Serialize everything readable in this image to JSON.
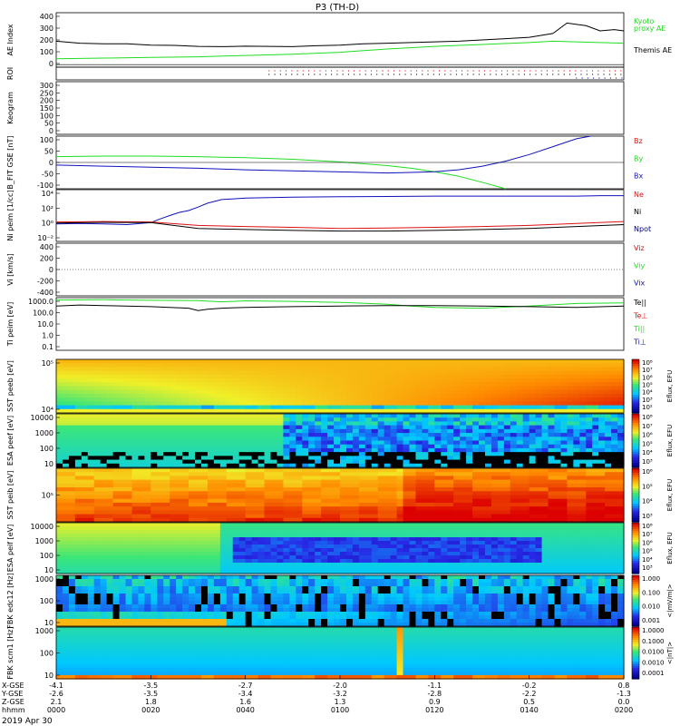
{
  "title": "P3 (TH-D)",
  "date_label": "2019 Apr 30",
  "colors": {
    "black": "#000000",
    "green": "#22dd22",
    "red": "#dd1111",
    "blue": "#1111bb",
    "navy": "#000080"
  },
  "chart_data": [
    {
      "type": "line",
      "panel": "ae",
      "ylabel": "AE Index",
      "ylim": [
        -20,
        400
      ],
      "yticks": [
        "400",
        "300",
        "200",
        "100",
        "0"
      ],
      "legend": [
        "Kyoto",
        "proxy AE",
        "Themis AE"
      ],
      "series": [
        {
          "name": "Themis AE",
          "color": "black",
          "x": [
            0,
            5,
            10,
            15,
            20,
            25,
            30,
            35,
            40,
            45,
            50,
            55,
            60,
            65,
            70,
            75,
            80,
            85,
            90,
            95,
            100,
            105,
            108,
            112,
            115,
            118,
            120
          ],
          "y": [
            180,
            165,
            160,
            160,
            150,
            148,
            140,
            138,
            142,
            140,
            138,
            145,
            150,
            160,
            165,
            170,
            175,
            180,
            190,
            200,
            210,
            240,
            320,
            300,
            260,
            270,
            260
          ]
        },
        {
          "name": "Kyoto proxy AE",
          "color": "green",
          "x": [
            0,
            10,
            20,
            30,
            40,
            50,
            60,
            70,
            80,
            90,
            100,
            105,
            110,
            115,
            120
          ],
          "y": [
            45,
            50,
            55,
            60,
            70,
            80,
            95,
            120,
            140,
            155,
            170,
            180,
            175,
            170,
            165
          ]
        }
      ]
    },
    {
      "type": "scatter",
      "panel": "roi",
      "ylabel": "ROI",
      "rows": [
        {
          "color": "red",
          "x_start": 45,
          "x_end": 120
        },
        {
          "color": "black",
          "x_start": 45,
          "x_end": 120
        },
        {
          "color": "blue",
          "x_start": 110,
          "x_end": 120
        }
      ]
    },
    {
      "type": "line",
      "panel": "keogram",
      "ylabel": "Keogram",
      "ylim": [
        0,
        300
      ],
      "yticks": [
        "300",
        "250",
        "200",
        "150",
        "100",
        "50",
        "0"
      ]
    },
    {
      "type": "line",
      "panel": "bfit",
      "ylabel": "B_FIT GSE [nT]",
      "ylim": [
        -100,
        100
      ],
      "yticks": [
        "100",
        "50",
        "0",
        "-50",
        "-100"
      ],
      "legend": [
        "Bz",
        "By",
        "Bx"
      ],
      "series": [
        {
          "name": "By",
          "color": "green",
          "x": [
            0,
            10,
            20,
            30,
            40,
            50,
            60,
            70,
            75,
            80,
            85,
            90,
            95
          ],
          "y": [
            22,
            24,
            24,
            22,
            18,
            12,
            2,
            -12,
            -22,
            -35,
            -52,
            -75,
            -100
          ]
        },
        {
          "name": "Bx",
          "color": "blue",
          "x": [
            0,
            10,
            20,
            30,
            40,
            50,
            60,
            70,
            75,
            80,
            85,
            90,
            95,
            100,
            105,
            110,
            113
          ],
          "y": [
            -10,
            -14,
            -18,
            -22,
            -28,
            -32,
            -36,
            -40,
            -38,
            -35,
            -28,
            -15,
            5,
            30,
            60,
            90,
            100
          ]
        }
      ]
    },
    {
      "type": "line",
      "panel": "density",
      "ylabel": "Ni peim [1/cc]",
      "yscale": "log",
      "ytick_labels": [
        "10⁴",
        "10²",
        "10⁰",
        "10⁻²"
      ],
      "legend": [
        "Ne",
        "Ni",
        "Npot"
      ],
      "series": [
        {
          "name": "Npot",
          "color": "blue",
          "x": [
            0,
            5,
            10,
            15,
            20,
            22,
            24,
            26,
            28,
            30,
            32,
            35,
            40,
            50,
            60,
            70,
            80,
            90,
            100,
            110,
            115,
            120
          ],
          "y": [
            0.5,
            0.6,
            0.5,
            0.4,
            0.8,
            3,
            10,
            30,
            60,
            200,
            800,
            3000,
            5000,
            7000,
            8000,
            9000,
            10000,
            10000,
            10000,
            10000,
            12000,
            12000
          ]
        },
        {
          "name": "Ne",
          "color": "red",
          "x": [
            0,
            10,
            20,
            30,
            40,
            50,
            60,
            70,
            80,
            90,
            100,
            110,
            120
          ],
          "y": [
            1,
            1.2,
            1,
            0.3,
            0.2,
            0.15,
            0.1,
            0.12,
            0.15,
            0.2,
            0.3,
            0.6,
            1.2
          ]
        },
        {
          "name": "Ni",
          "color": "black",
          "x": [
            0,
            10,
            20,
            30,
            40,
            50,
            60,
            70,
            80,
            90,
            100,
            110,
            120
          ],
          "y": [
            0.7,
            0.9,
            0.8,
            0.1,
            0.07,
            0.05,
            0.04,
            0.04,
            0.05,
            0.07,
            0.1,
            0.2,
            0.4
          ]
        }
      ]
    },
    {
      "type": "line",
      "panel": "velocity",
      "ylabel": "Vi [km/s]",
      "ylim": [
        -500,
        500
      ],
      "yticks": [
        "400",
        "200",
        "0",
        "-200",
        "-400"
      ],
      "legend": [
        "Viz",
        "Viy",
        "Vix"
      ]
    },
    {
      "type": "line",
      "panel": "temperature",
      "ylabel": "Ti peim [eV]",
      "yscale": "log",
      "ytick_labels": [
        "1000.0",
        "100.0",
        "10.0",
        "1.0",
        "0.1"
      ],
      "legend": [
        "Te||",
        "Te⊥",
        "Ti||",
        "Ti⊥"
      ],
      "series": [
        {
          "name": "Ti||",
          "color": "green",
          "x": [
            0,
            10,
            20,
            30,
            35,
            40,
            50,
            60,
            70,
            75,
            80,
            90,
            100,
            110,
            120
          ],
          "y": [
            3000,
            3200,
            2800,
            2600,
            2000,
            2500,
            2200,
            1800,
            1200,
            800,
            600,
            500,
            800,
            1400,
            1600
          ]
        },
        {
          "name": "Te||",
          "color": "black",
          "x": [
            0,
            5,
            10,
            20,
            28,
            30,
            32,
            35,
            40,
            50,
            60,
            70,
            80,
            90,
            100,
            110,
            120
          ],
          "y": [
            800,
            1000,
            900,
            700,
            500,
            300,
            400,
            500,
            600,
            700,
            800,
            900,
            900,
            800,
            700,
            600,
            800
          ]
        }
      ]
    },
    {
      "type": "heatmap",
      "panel": "sst_e",
      "ylabel": "SST peeb [eV]",
      "ytick_labels": [
        "10⁵",
        "10⁴"
      ],
      "zlabel": "Eflux, EFU",
      "zticks": [
        "10⁸",
        "10⁷",
        "10⁶",
        "10⁵",
        "10⁴",
        "10³",
        "10²"
      ]
    },
    {
      "type": "heatmap",
      "panel": "esa_e",
      "ylabel": "ESA peef [eV]",
      "ytick_labels": [
        "10000",
        "1000",
        "100",
        "10"
      ],
      "zlabel": "Eflux, EFU",
      "zticks": [
        "10⁸",
        "10⁷",
        "10⁶",
        "10⁵",
        "10⁴",
        "10³"
      ]
    },
    {
      "type": "heatmap",
      "panel": "sst_i",
      "ylabel": "SST peib [eV]",
      "ytick_labels": [
        "10⁵"
      ],
      "zlabel": "Eflux, EFU",
      "zticks": [
        "10⁶",
        "10⁵",
        "10⁴",
        "10³"
      ]
    },
    {
      "type": "heatmap",
      "panel": "esa_i",
      "ylabel": "ESA peif [eV]",
      "ytick_labels": [
        "10000",
        "1000",
        "100",
        "10"
      ],
      "zlabel": "Eflux, EFU",
      "zticks": [
        "10⁸",
        "10⁷",
        "10⁶",
        "10⁵",
        "10⁴",
        "10³"
      ]
    },
    {
      "type": "heatmap",
      "panel": "fbk_e",
      "ylabel": "FBK edc12 [Hz]",
      "ytick_labels": [
        "1000",
        "100",
        "10"
      ],
      "zlabel": "<|mV/m|>",
      "zticks": [
        "1.000",
        "0.100",
        "0.010",
        "0.001"
      ]
    },
    {
      "type": "heatmap",
      "panel": "fbk_b",
      "ylabel": "FBK scm1 [Hz]",
      "ytick_labels": [
        "1000",
        "100",
        "10"
      ],
      "zlabel": "<|nT|>",
      "zticks": [
        "1.0000",
        "0.1000",
        "0.0100",
        "0.0010",
        "0.0001"
      ]
    }
  ],
  "x_axis": {
    "row_labels": [
      "X-GSE",
      "Y-GSE",
      "Z-GSE",
      "hhmm"
    ],
    "ticks": [
      {
        "x": 0,
        "values": [
          "-4.1",
          "-2.6",
          "2.1",
          "0000"
        ]
      },
      {
        "x": 20,
        "values": [
          "-3.5",
          "-3.5",
          "1.8",
          "0020"
        ]
      },
      {
        "x": 40,
        "values": [
          "-2.7",
          "-3.4",
          "1.6",
          "0040"
        ]
      },
      {
        "x": 60,
        "values": [
          "-2.0",
          "-3.2",
          "1.3",
          "0100"
        ]
      },
      {
        "x": 80,
        "values": [
          "-1.1",
          "-2.8",
          "0.9",
          "0120"
        ]
      },
      {
        "x": 100,
        "values": [
          "-0.2",
          "-2.2",
          "0.5",
          "0140"
        ]
      },
      {
        "x": 120,
        "values": [
          "0.8",
          "-1.3",
          "0.0",
          "0200"
        ]
      }
    ]
  }
}
